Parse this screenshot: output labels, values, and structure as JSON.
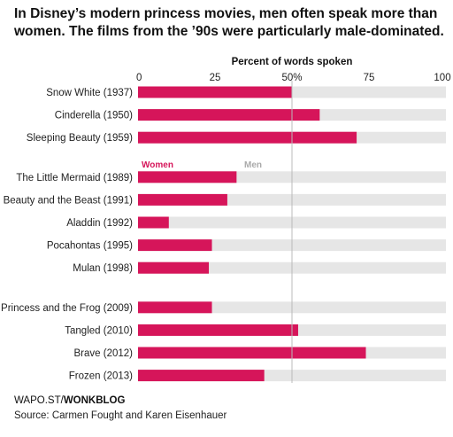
{
  "title": "In Disney’s modern princess movies, men often speak more than women. The films from the ’90s were particularly male-dominated.",
  "credit_prefix": "WAPO.ST/",
  "credit_brand": "WONKBLOG",
  "source": "Source: Carmen Fought and Karen Eisenhauer",
  "chart_data": {
    "type": "bar",
    "orientation": "horizontal",
    "stacked_to_100": true,
    "xlabel": "Percent of words spoken",
    "xlim": [
      0,
      100
    ],
    "xticks": [
      "0",
      "25",
      "50%",
      "75",
      "100"
    ],
    "xtick_values": [
      0,
      25,
      50,
      75,
      100
    ],
    "grid": "vertical line at 50%",
    "legend": [
      {
        "name": "Women",
        "color": "#d6155a"
      },
      {
        "name": "Men",
        "color": "#e6e6e6"
      }
    ],
    "legend_label_colors": {
      "Women": "#d6155a",
      "Men": "#aaaaaa"
    },
    "groups": [
      [
        "Snow White (1937)",
        "Cinderella (1950)",
        "Sleeping Beauty (1959)"
      ],
      [
        "The Little Mermaid (1989)",
        "Beauty and the Beast (1991)",
        "Aladdin (1992)",
        "Pocahontas (1995)",
        "Mulan (1998)"
      ],
      [
        "Princess and the Frog (2009)",
        "Tangled (2010)",
        "Brave (2012)",
        "Frozen (2013)"
      ]
    ],
    "categories": [
      "Snow White (1937)",
      "Cinderella (1950)",
      "Sleeping Beauty (1959)",
      "The Little Mermaid (1989)",
      "Beauty and the Beast (1991)",
      "Aladdin (1992)",
      "Pocahontas (1995)",
      "Mulan (1998)",
      "Princess and the Frog (2009)",
      "Tangled (2010)",
      "Brave (2012)",
      "Frozen (2013)"
    ],
    "series": [
      {
        "name": "Women",
        "values": [
          50,
          59,
          71,
          32,
          29,
          10,
          24,
          23,
          24,
          52,
          74,
          41
        ]
      },
      {
        "name": "Men",
        "values": [
          50,
          41,
          29,
          68,
          71,
          90,
          76,
          77,
          76,
          48,
          26,
          59
        ]
      }
    ]
  }
}
